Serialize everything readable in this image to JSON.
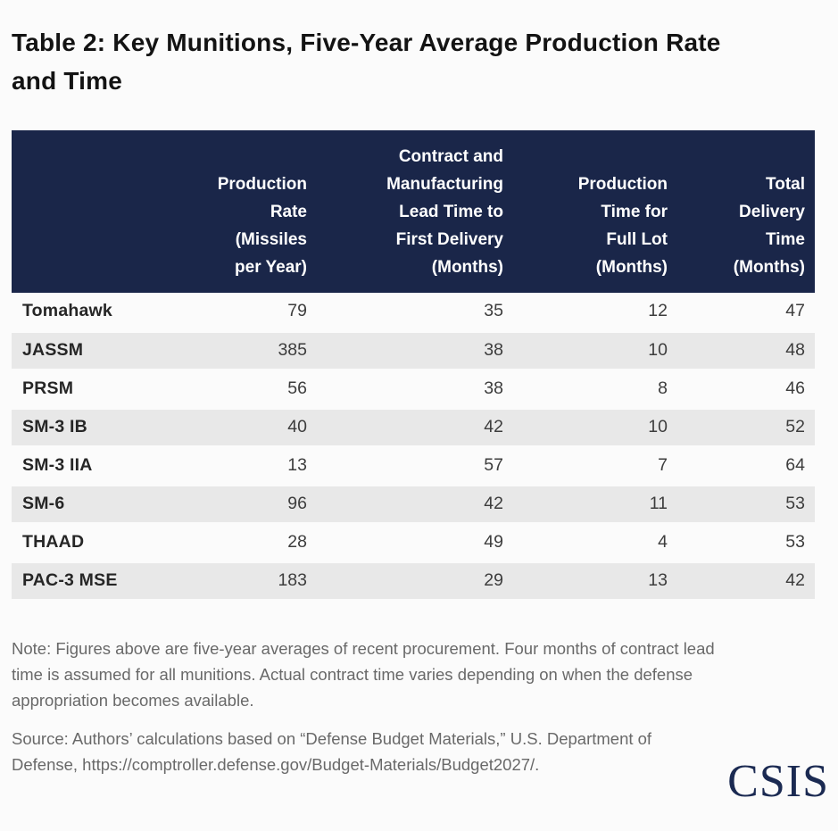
{
  "page": {
    "title_line1": "Table 2: Key Munitions, Five-Year Average Production Rate",
    "title_line2": "and Time"
  },
  "colors": {
    "header_background": "#1a2649",
    "stripe": "#e8e8e8",
    "logo_navy": "#1b2a52"
  },
  "chart_data": {
    "type": "table",
    "title": "Table 2: Key Munitions, Five-Year Average Production Rate and Time",
    "columns": [
      "",
      "Production Rate (Missiles per Year)",
      "Contract and Manufacturing Lead Time to First Delivery (Months)",
      "Production Time for Full Lot (Months)",
      "Total Delivery Time (Months)"
    ],
    "rows": [
      [
        "Tomahawk",
        79,
        35,
        12,
        47
      ],
      [
        "JASSM",
        385,
        38,
        10,
        48
      ],
      [
        "PRSM",
        56,
        38,
        8,
        46
      ],
      [
        "SM-3 IB",
        40,
        42,
        10,
        52
      ],
      [
        "SM-3 IIA",
        13,
        57,
        7,
        64
      ],
      [
        "SM-6",
        96,
        42,
        11,
        53
      ],
      [
        "THAAD",
        28,
        49,
        4,
        53
      ],
      [
        "PAC-3 MSE",
        183,
        29,
        13,
        42
      ]
    ]
  },
  "table": {
    "columns": [
      {
        "lines": [
          ""
        ]
      },
      {
        "lines": [
          "Production",
          "Rate",
          "(Missiles",
          "per Year)"
        ]
      },
      {
        "lines": [
          "Contract and",
          "Manufacturing",
          "Lead Time to",
          "First Delivery",
          "(Months)"
        ]
      },
      {
        "lines": [
          "Production",
          "Time for",
          "Full Lot",
          "(Months)"
        ]
      },
      {
        "lines": [
          "Total",
          "Delivery",
          "Time",
          "(Months)"
        ]
      }
    ],
    "rows": [
      {
        "name": "Tomahawk",
        "values": [
          79,
          35,
          12,
          47
        ]
      },
      {
        "name": "JASSM",
        "values": [
          385,
          38,
          10,
          48
        ]
      },
      {
        "name": "PRSM",
        "values": [
          56,
          38,
          8,
          46
        ]
      },
      {
        "name": "SM-3 IB",
        "values": [
          40,
          42,
          10,
          52
        ]
      },
      {
        "name": "SM-3 IIA",
        "values": [
          13,
          57,
          7,
          64
        ]
      },
      {
        "name": "SM-6",
        "values": [
          96,
          42,
          11,
          53
        ]
      },
      {
        "name": "THAAD",
        "values": [
          28,
          49,
          4,
          53
        ]
      },
      {
        "name": "PAC-3 MSE",
        "values": [
          183,
          29,
          13,
          42
        ]
      }
    ]
  },
  "note": "Note: Figures above are five-year averages of recent procurement. Four months of contract lead time is assumed for all munitions. Actual contract time varies depending on when the defense appropriation becomes available.",
  "source": "Source: Authors’ calculations based on “Defense Budget Materials,” U.S. Department of Defense, https://comptroller.defense.gov/Budget-Materials/Budget2027/.",
  "logo": {
    "text": "CSIS"
  }
}
